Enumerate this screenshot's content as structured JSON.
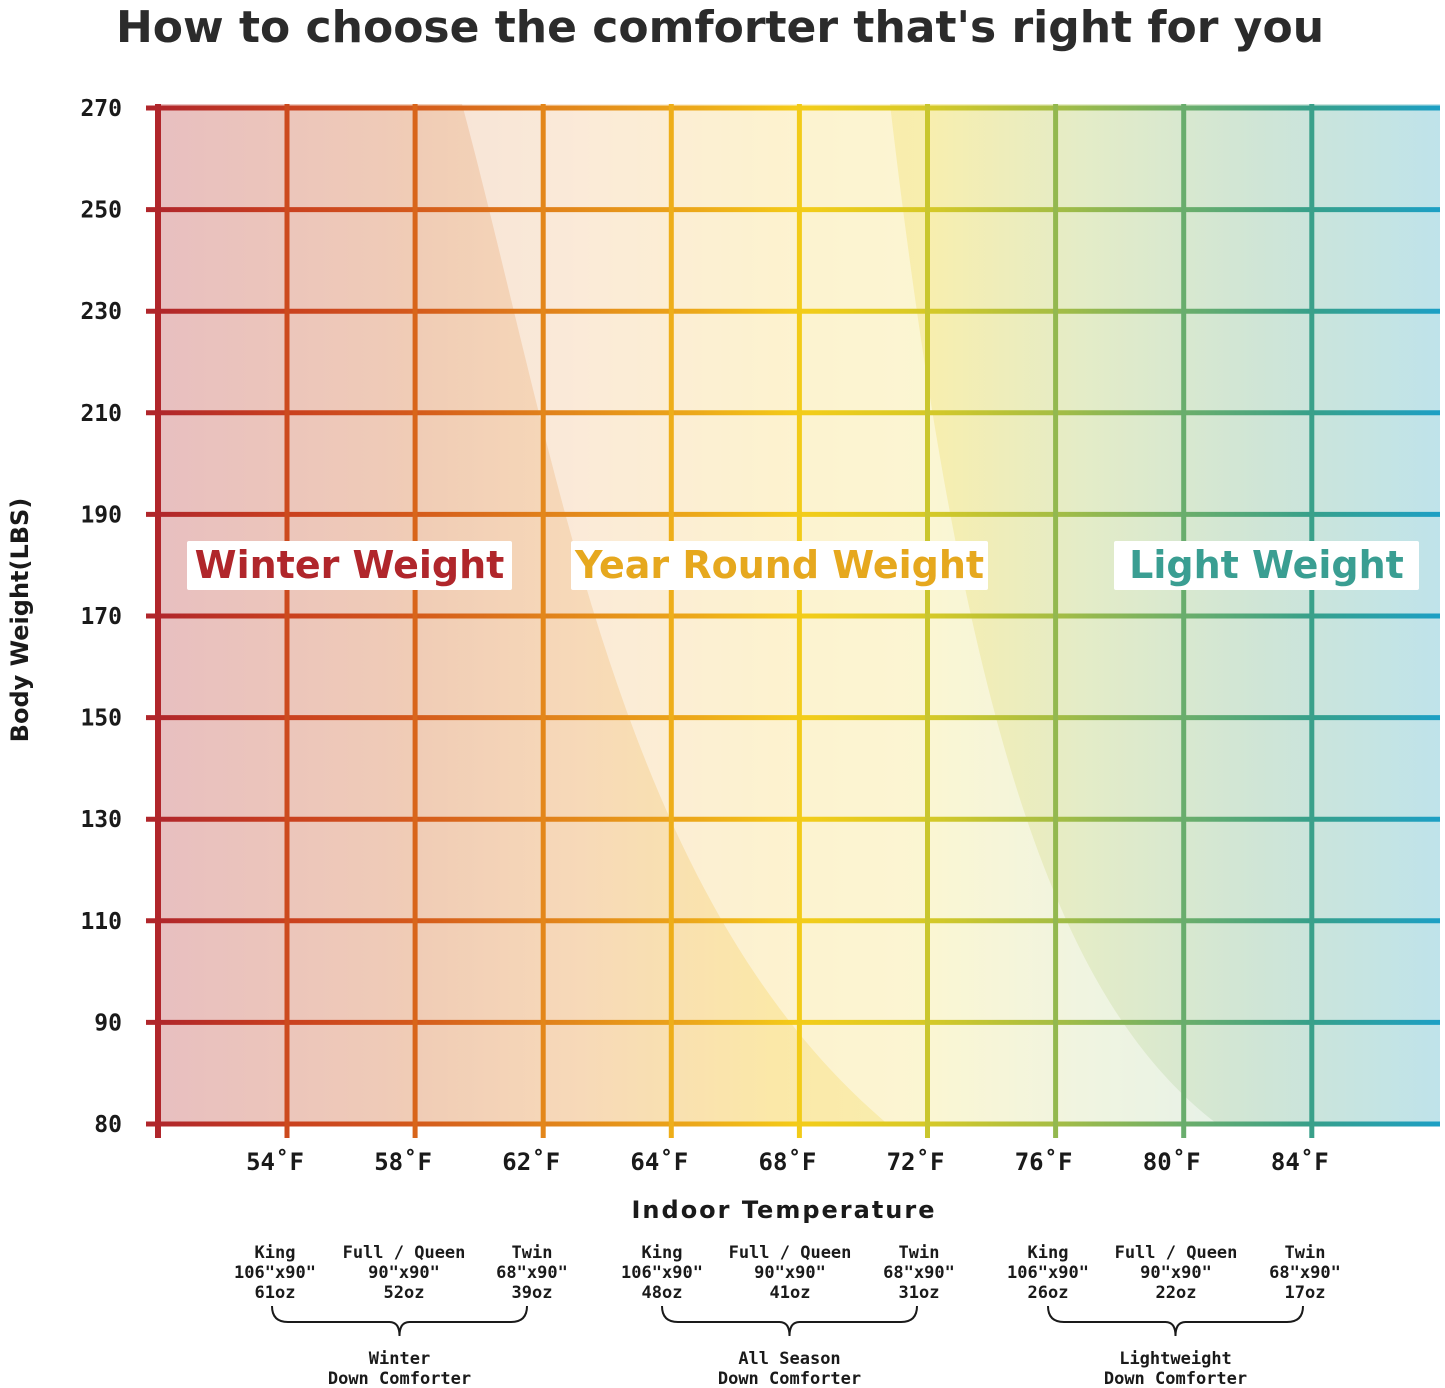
{
  "chart_data": {
    "type": "table",
    "title": "How to choose the comforter that's right for you",
    "xlabel": "Indoor Temperature",
    "ylabel": "Body Weight(LBS)",
    "x_ticks": [
      54,
      58,
      62,
      64,
      68,
      72,
      76,
      80,
      84
    ],
    "x_tick_labels": [
      "54˚F",
      "58˚F",
      "62˚F",
      "64˚F",
      "68˚F",
      "72˚F",
      "76˚F",
      "80˚F",
      "84˚F"
    ],
    "y_ticks": [
      80,
      90,
      110,
      130,
      150,
      170,
      190,
      210,
      230,
      250,
      270
    ],
    "grid": true,
    "zones": [
      {
        "name": "Winter Weight",
        "color": "#b0262b"
      },
      {
        "name": "Year Round Weight",
        "color": "#e6a81e"
      },
      {
        "name": "Light Weight",
        "color": "#3a9e92"
      }
    ],
    "products": [
      {
        "size": "King",
        "dims": "106\"x90\"",
        "weight": "61oz"
      },
      {
        "size": "Full / Queen",
        "dims": "90\"x90\"",
        "weight": "52oz"
      },
      {
        "size": "Twin",
        "dims": "68\"x90\"",
        "weight": "39oz"
      },
      {
        "size": "King",
        "dims": "106\"x90\"",
        "weight": "48oz"
      },
      {
        "size": "Full / Queen",
        "dims": "90\"x90\"",
        "weight": "41oz"
      },
      {
        "size": "Twin",
        "dims": "68\"x90\"",
        "weight": "31oz"
      },
      {
        "size": "King",
        "dims": "106\"x90\"",
        "weight": "26oz"
      },
      {
        "size": "Full / Queen",
        "dims": "90\"x90\"",
        "weight": "22oz"
      },
      {
        "size": "Twin",
        "dims": "68\"x90\"",
        "weight": "17oz"
      }
    ],
    "groups": [
      {
        "line1": "Winter",
        "line2": "Down Comforter"
      },
      {
        "line1": "All Season",
        "line2": "Down Comforter"
      },
      {
        "line1": "Lightweight",
        "line2": "Down Comforter"
      }
    ]
  },
  "colors": {
    "gradient": [
      "#b0262b",
      "#d2511e",
      "#e58a1a",
      "#f3c419",
      "#f6d61a",
      "#b4c43a",
      "#6aae6a",
      "#2a9e9a",
      "#1e9ec6"
    ]
  }
}
